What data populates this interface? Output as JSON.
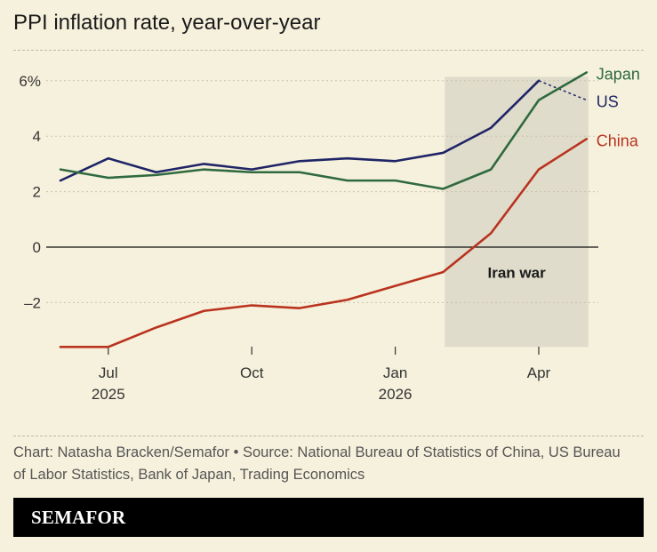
{
  "title": "PPI inflation rate, year-over-year",
  "credit": "Chart: Natasha Bracken/Semafor • Source: National Bureau of Statistics of China, US Bureau of Labor Statistics, Bank of Japan, Trading Economics",
  "brand": "SEMAFOR",
  "colors": {
    "background": "#f6f1dc",
    "us": "#1f2466",
    "japan": "#2f6a3f",
    "china": "#b9331f",
    "shade": "#e0dccb",
    "grid": "#c8c3ae"
  },
  "chart_data": {
    "type": "line",
    "title": "PPI inflation rate, year-over-year",
    "xlabel": "",
    "ylabel": "",
    "x": [
      "2025-06",
      "2025-07",
      "2025-08",
      "2025-09",
      "2025-10",
      "2025-11",
      "2025-12",
      "2026-01",
      "2026-02",
      "2026-03",
      "2026-04",
      "2026-05"
    ],
    "x_ticks": [
      {
        "x": "2025-07",
        "label": "Jul",
        "sublabel": "2025"
      },
      {
        "x": "2025-10",
        "label": "Oct",
        "sublabel": ""
      },
      {
        "x": "2026-01",
        "label": "Jan",
        "sublabel": "2026"
      },
      {
        "x": "2026-04",
        "label": "Apr",
        "sublabel": ""
      }
    ],
    "y_ticks": [
      {
        "value": 6,
        "label": "6%"
      },
      {
        "value": 4,
        "label": "4"
      },
      {
        "value": 2,
        "label": "2"
      },
      {
        "value": 0,
        "label": "0"
      },
      {
        "value": -2,
        "label": "–2"
      }
    ],
    "ylim": [
      -3.6,
      6.3
    ],
    "grid": true,
    "legend": "direct labels at right",
    "series": [
      {
        "name": "US",
        "key": "us",
        "values": [
          2.4,
          3.2,
          2.7,
          3.0,
          2.8,
          3.1,
          3.2,
          3.1,
          3.4,
          4.3,
          6.0,
          5.3
        ],
        "dashed_last_segment": true
      },
      {
        "name": "Japan",
        "key": "japan",
        "values": [
          2.8,
          2.5,
          2.6,
          2.8,
          2.7,
          2.7,
          2.4,
          2.4,
          2.1,
          2.8,
          5.3,
          6.3
        ]
      },
      {
        "name": "China",
        "key": "china",
        "values": [
          -3.6,
          -3.6,
          -2.9,
          -2.3,
          -2.1,
          -2.2,
          -1.9,
          -1.4,
          -0.9,
          0.5,
          2.8,
          3.9
        ]
      }
    ],
    "annotations": [
      {
        "label": "Iran war",
        "x_start": "2026-02",
        "x_end": "2026-05"
      }
    ]
  }
}
